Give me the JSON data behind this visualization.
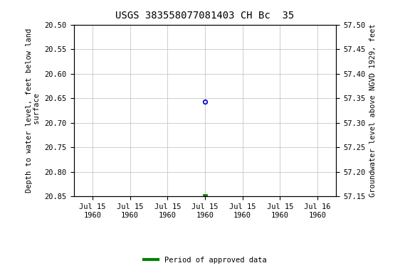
{
  "title": "USGS 383558077081403 CH Bc  35",
  "ylabel_left": "Depth to water level, feet below land\n surface",
  "ylabel_right": "Groundwater level above NGVD 1929, feet",
  "ylim_left": [
    20.85,
    20.5
  ],
  "ylim_right": [
    57.15,
    57.5
  ],
  "yticks_left": [
    20.5,
    20.55,
    20.6,
    20.65,
    20.7,
    20.75,
    20.8,
    20.85
  ],
  "yticks_right": [
    57.15,
    57.2,
    57.25,
    57.3,
    57.35,
    57.4,
    57.45,
    57.5
  ],
  "ytick_labels_left": [
    "20.50",
    "20.55",
    "20.60",
    "20.65",
    "20.70",
    "20.75",
    "20.80",
    "20.85"
  ],
  "ytick_labels_right": [
    "57.15",
    "57.20",
    "57.25",
    "57.30",
    "57.35",
    "57.40",
    "57.45",
    "57.50"
  ],
  "xtick_positions": [
    0,
    1,
    2,
    3,
    4,
    5,
    6
  ],
  "xtick_labels": [
    "Jul 15\n1960",
    "Jul 15\n1960",
    "Jul 15\n1960",
    "Jul 15\n1960",
    "Jul 15\n1960",
    "Jul 15\n1960",
    "Jul 16\n1960"
  ],
  "xlim": [
    -0.5,
    6.5
  ],
  "point_blue_x": 3.0,
  "point_blue_y": 20.657,
  "point_green_x": 3.0,
  "point_green_y": 20.85,
  "background_color": "#ffffff",
  "grid_color": "#bbbbbb",
  "blue_color": "#0000cc",
  "green_color": "#008000",
  "legend_label": "Period of approved data",
  "font_family": "monospace",
  "title_fontsize": 10,
  "tick_fontsize": 7.5,
  "label_fontsize": 7.5
}
